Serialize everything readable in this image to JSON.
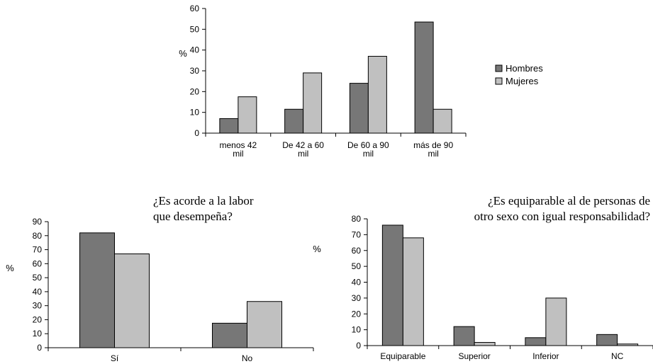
{
  "colors": {
    "hombres": "#777777",
    "mujeres": "#c0c0c0",
    "axis": "#000000",
    "background": "#ffffff"
  },
  "legend": {
    "hombres": "Hombres",
    "mujeres": "Mujeres"
  },
  "chart_data": [
    {
      "type": "bar",
      "title_lines": [],
      "ylabel": "%",
      "ylim": [
        0,
        60
      ],
      "yticks": [
        0,
        10,
        20,
        30,
        40,
        50,
        60
      ],
      "categories": [
        [
          "menos 42",
          "mil"
        ],
        [
          "De 42 a 60",
          "mil"
        ],
        [
          "De 60 a 90",
          "mil"
        ],
        [
          "más de 90",
          "mil"
        ]
      ],
      "series": [
        {
          "name": "Hombres",
          "values": [
            7,
            11.5,
            24,
            53.5
          ]
        },
        {
          "name": "Mujeres",
          "values": [
            17.5,
            29,
            37,
            11.5
          ]
        }
      ],
      "legend_position": "right"
    },
    {
      "type": "bar",
      "title_lines": [
        "¿Es acorde a la labor",
        "que desempeña?"
      ],
      "ylabel": "%",
      "ylim": [
        0,
        90
      ],
      "yticks": [
        0,
        10,
        20,
        30,
        40,
        50,
        60,
        70,
        80,
        90
      ],
      "categories": [
        [
          "Sí"
        ],
        [
          "No"
        ]
      ],
      "series": [
        {
          "name": "Hombres",
          "values": [
            82,
            17.5
          ]
        },
        {
          "name": "Mujeres",
          "values": [
            67,
            33
          ]
        }
      ]
    },
    {
      "type": "bar",
      "title_lines": [
        "¿Es equiparable al de personas de",
        "otro sexo con igual responsabilidad?"
      ],
      "ylabel": "%",
      "ylim": [
        0,
        80
      ],
      "yticks": [
        0,
        10,
        20,
        30,
        40,
        50,
        60,
        70,
        80
      ],
      "categories": [
        [
          "Equiparable"
        ],
        [
          "Superior"
        ],
        [
          "Inferior"
        ],
        [
          "NC"
        ]
      ],
      "series": [
        {
          "name": "Hombres",
          "values": [
            76,
            12,
            5,
            7
          ]
        },
        {
          "name": "Mujeres",
          "values": [
            68,
            2,
            30,
            1
          ]
        }
      ]
    }
  ]
}
